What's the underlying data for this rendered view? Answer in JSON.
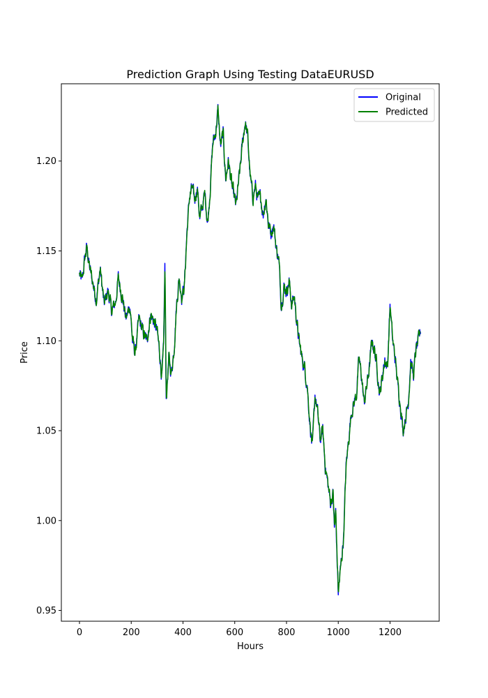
{
  "chart_data": {
    "type": "line",
    "title": "Prediction Graph Using Testing DataEURUSD",
    "xlabel": "Hours",
    "ylabel": "Price",
    "xlim": [
      -70,
      1390
    ],
    "ylim": [
      0.944,
      1.243
    ],
    "x_ticks": [
      0,
      200,
      400,
      600,
      800,
      1000,
      1200
    ],
    "y_ticks": [
      0.95,
      1.0,
      1.05,
      1.1,
      1.15,
      1.2
    ],
    "y_tick_labels": [
      "0.95",
      "1.00",
      "1.05",
      "1.10",
      "1.15",
      "1.20"
    ],
    "grid": false,
    "legend_position": "top-right",
    "series": [
      {
        "name": "Original",
        "color": "#0000ff"
      },
      {
        "name": "Predicted",
        "color": "#008000"
      }
    ],
    "key_points": {
      "x": [
        0,
        10,
        20,
        28,
        40,
        55,
        65,
        80,
        95,
        110,
        125,
        140,
        150,
        165,
        180,
        195,
        205,
        215,
        230,
        245,
        260,
        275,
        290,
        300,
        310,
        318,
        325,
        330,
        335,
        345,
        355,
        365,
        375,
        385,
        395,
        405,
        415,
        425,
        435,
        445,
        455,
        465,
        475,
        485,
        495,
        505,
        515,
        525,
        535,
        545,
        555,
        565,
        575,
        590,
        605,
        620,
        630,
        640,
        650,
        660,
        670,
        680,
        690,
        700,
        710,
        720,
        730,
        740,
        750,
        760,
        770,
        780,
        790,
        800,
        810,
        820,
        830,
        840,
        850,
        860,
        870,
        880,
        890,
        900,
        910,
        920,
        930,
        940,
        950,
        960,
        970,
        980,
        985,
        990,
        995,
        1000,
        1010,
        1020,
        1030,
        1040,
        1050,
        1060,
        1070,
        1080,
        1090,
        1100,
        1110,
        1120,
        1130,
        1140,
        1150,
        1160,
        1170,
        1180,
        1190,
        1200,
        1210,
        1220,
        1230,
        1240,
        1250,
        1260,
        1270,
        1280,
        1290,
        1300,
        1310,
        1318
      ],
      "y": [
        1.137,
        1.133,
        1.145,
        1.152,
        1.14,
        1.13,
        1.123,
        1.14,
        1.12,
        1.128,
        1.116,
        1.122,
        1.135,
        1.125,
        1.112,
        1.12,
        1.1,
        1.093,
        1.112,
        1.105,
        1.1,
        1.115,
        1.11,
        1.105,
        1.093,
        1.08,
        1.095,
        1.142,
        1.068,
        1.09,
        1.082,
        1.095,
        1.12,
        1.135,
        1.125,
        1.13,
        1.16,
        1.18,
        1.185,
        1.178,
        1.186,
        1.168,
        1.175,
        1.182,
        1.165,
        1.185,
        1.21,
        1.215,
        1.228,
        1.208,
        1.215,
        1.19,
        1.2,
        1.185,
        1.175,
        1.195,
        1.21,
        1.222,
        1.213,
        1.19,
        1.18,
        1.186,
        1.178,
        1.18,
        1.17,
        1.18,
        1.165,
        1.16,
        1.165,
        1.152,
        1.145,
        1.12,
        1.13,
        1.128,
        1.133,
        1.12,
        1.125,
        1.11,
        1.098,
        1.09,
        1.085,
        1.075,
        1.055,
        1.04,
        1.07,
        1.06,
        1.045,
        1.05,
        1.03,
        1.02,
        1.01,
        1.015,
        0.995,
        1.005,
        0.98,
        0.96,
        0.975,
        0.99,
        1.03,
        1.045,
        1.06,
        1.065,
        1.07,
        1.09,
        1.08,
        1.065,
        1.075,
        1.085,
        1.1,
        1.095,
        1.085,
        1.07,
        1.08,
        1.09,
        1.085,
        1.12,
        1.1,
        1.09,
        1.075,
        1.065,
        1.05,
        1.058,
        1.065,
        1.09,
        1.08,
        1.095,
        1.1,
        1.106
      ]
    }
  }
}
